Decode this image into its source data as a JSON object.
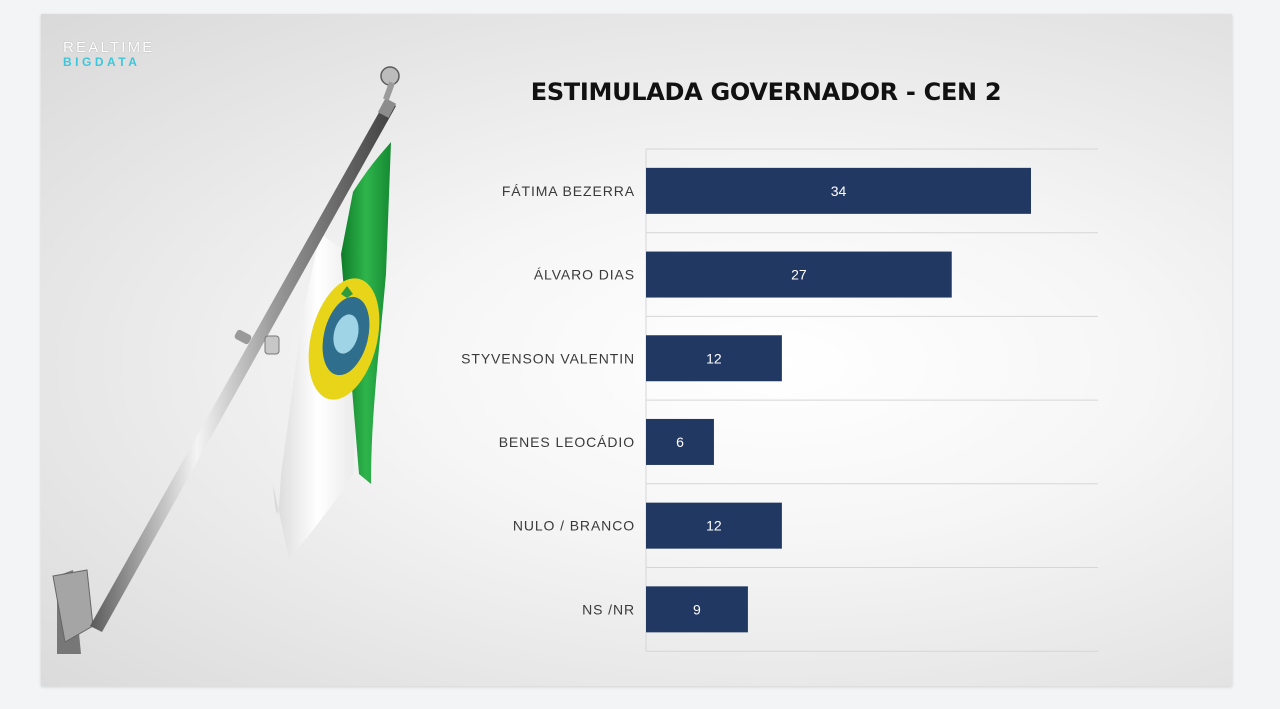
{
  "logo": {
    "line1": "REALTIME",
    "line2": "BIGDATA"
  },
  "colors": {
    "bar": "#213862",
    "grid": "#d6d6d6",
    "label": "#3a3a3a",
    "accent": "#3cc7dc",
    "flag_green": "#1f9a3c",
    "flag_yellow": "#e8d51a"
  },
  "chart_data": {
    "type": "bar",
    "orientation": "horizontal",
    "title": "ESTIMULADA GOVERNADOR - CEN 2",
    "categories": [
      "FÁTIMA BEZERRA",
      "ÁLVARO DIAS",
      "STYVENSON VALENTIN",
      "BENES LEOCÁDIO",
      "NULO / BRANCO",
      "NS /NR"
    ],
    "values": [
      34,
      27,
      12,
      6,
      12,
      9
    ],
    "xlim": [
      0,
      40
    ],
    "data_labels": true,
    "grid": true
  }
}
